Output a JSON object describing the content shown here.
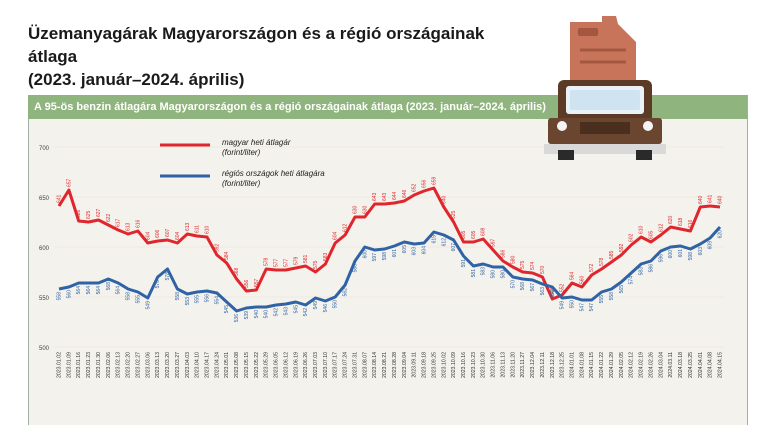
{
  "title_line1": "Üzemanyagárak Magyarországon és a régió országainak átlaga",
  "title_line2": "(2023. január–2024. április)",
  "subtitle": "A 95-ös benzin átlagára Magyarországon és a régió országainak átlaga (2023. január–2024. április)",
  "colors": {
    "hungary": "#e0262d",
    "region": "#2f63a5",
    "banner": "#8fb47e",
    "truck": "#5b3a26",
    "canister": "#c8745a"
  },
  "chart_data": {
    "type": "line",
    "ylim": [
      500,
      700
    ],
    "yticks": [
      500,
      550,
      600,
      650,
      700
    ],
    "x": [
      "2023.01.02",
      "2023.01.09",
      "2023.01.16",
      "2023.01.23",
      "2023.01.30",
      "2023.02.06",
      "2023.02.13",
      "2023.02.20",
      "2023.02.27",
      "2023.03.06",
      "2023.03.13",
      "2023.03.20",
      "2023.03.27",
      "2023.04.03",
      "2023.04.10",
      "2023.04.17",
      "2023.04.24",
      "2023.05.01",
      "2023.05.08",
      "2023.05.15",
      "2023.05.22",
      "2023.05.29",
      "2023.06.05",
      "2023.06.12",
      "2023.06.19",
      "2023.06.26",
      "2023.07.03",
      "2023.07.10",
      "2023.07.17",
      "2023.07.24",
      "2023.07.31",
      "2023.08.07",
      "2023.08.14",
      "2023.08.21",
      "2023.08.28",
      "2023.09.04",
      "2023.09.11",
      "2023.09.18",
      "2023.09.25",
      "2023.10.02",
      "2023.10.09",
      "2023.10.16",
      "2023.10.23",
      "2023.10.30",
      "2023.11.06",
      "2023.11.13",
      "2023.11.20",
      "2023.11.27",
      "2023.12.04",
      "2023.12.11",
      "2023.12.18",
      "2023.12.25",
      "2024.01.01",
      "2024.01.08",
      "2024.01.15",
      "2024.01.22",
      "2024.01.29",
      "2024.02.05",
      "2024.02.12",
      "2024.02.19",
      "2024.02.26",
      "2024.03.04",
      "2024.03.11",
      "2024.03.18",
      "2024.03.25",
      "2024.04.01",
      "2024.04.08",
      "2024.04.15"
    ],
    "series": [
      {
        "name": "magyar heti átlagár (forint/liter)",
        "values": [
          641,
          657,
          626,
          625,
          627,
          622,
          617,
          613,
          616,
          604,
          606,
          607,
          604,
          613,
          611,
          610,
          592,
          584,
          568,
          556,
          557,
          578,
          577,
          577,
          579,
          581,
          575,
          583,
          604,
          612,
          630,
          630,
          643,
          643,
          644,
          646,
          652,
          656,
          659,
          640,
          625,
          605,
          605,
          608,
          597,
          586,
          580,
          575,
          574,
          570,
          548,
          552,
          564,
          560,
          572,
          578,
          585,
          592,
          602,
          610,
          605,
          612,
          620,
          618,
          616,
          640,
          641,
          640
        ]
      },
      {
        "name": "régiós országok heti átlagára (forint/liter)",
        "values": [
          558,
          560,
          564,
          564,
          564,
          568,
          564,
          558,
          555,
          549,
          570,
          578,
          558,
          553,
          555,
          556,
          554,
          545,
          536,
          539,
          540,
          540,
          542,
          543,
          545,
          542,
          549,
          546,
          550,
          562,
          586,
          600,
          597,
          598,
          601,
          605,
          603,
          604,
          615,
          612,
          607,
          591,
          581,
          583,
          580,
          580,
          570,
          568,
          567,
          563,
          560,
          549,
          550,
          547,
          547,
          555,
          558,
          565,
          574,
          583,
          586,
          596,
          600,
          601,
          598,
          603,
          609,
          620
        ]
      }
    ],
    "hungary_data_labels": [
      "641",
      "657",
      "626",
      "625",
      "627",
      "622",
      "617",
      "613",
      "616",
      "604",
      "606",
      "607",
      "604",
      "613",
      "611",
      "610",
      "592",
      "584",
      "568",
      "556",
      "557",
      "578",
      "577",
      "577",
      "579",
      "581",
      "575",
      "583",
      "604",
      "612",
      "630",
      "630",
      "643",
      "643",
      "644",
      "646",
      "652",
      "656",
      "659",
      "640",
      "625",
      "605",
      "605",
      "608",
      "597",
      "586",
      "580",
      "575",
      "574",
      "570",
      "548",
      "552",
      "564",
      "560",
      "572",
      "578",
      "585",
      "592",
      "602",
      "610",
      "605",
      "612",
      "620",
      "618",
      "616",
      "640",
      "641",
      "640"
    ],
    "region_data_labels": [
      "558",
      "560",
      "564",
      "564",
      "564",
      "568",
      "564",
      "558",
      "555",
      "549",
      "570",
      "578",
      "558",
      "553",
      "555",
      "556",
      "554",
      "545",
      "536",
      "539",
      "540",
      "540",
      "542",
      "543",
      "545",
      "542",
      "549",
      "546",
      "550",
      "562",
      "586",
      "600",
      "597",
      "598",
      "601",
      "605",
      "603",
      "604",
      "615",
      "612",
      "607",
      "591",
      "581",
      "583",
      "580",
      "580",
      "570",
      "568",
      "567",
      "563",
      "560",
      "549",
      "550",
      "547",
      "547",
      "555",
      "558",
      "565",
      "574",
      "583",
      "586",
      "596",
      "600",
      "601",
      "598",
      "603",
      "609",
      "620"
    ]
  }
}
